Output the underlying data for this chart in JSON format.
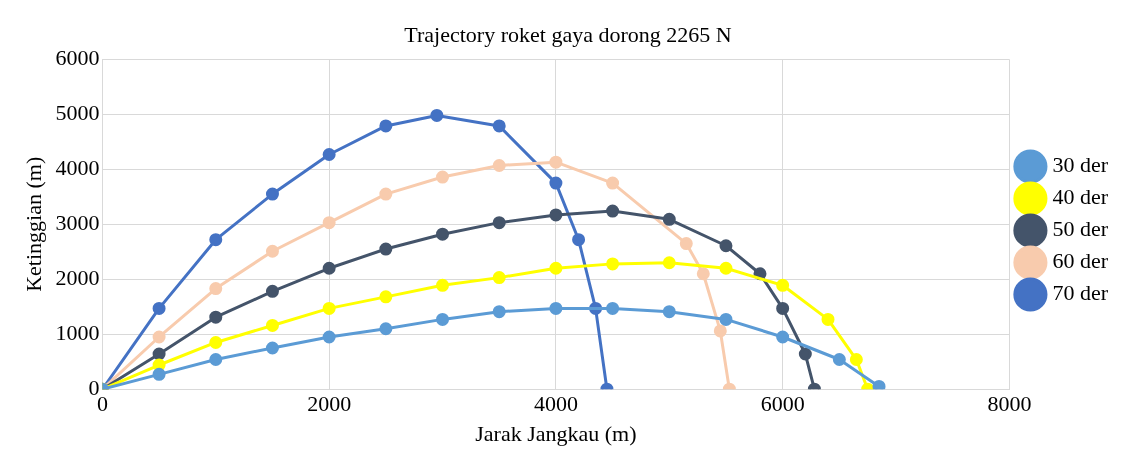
{
  "chart_data": {
    "type": "line",
    "title": "Trajectory roket gaya dorong 2265 N",
    "xlabel": "Jarak Jangkau (m)",
    "ylabel": "Ketinggian (m)",
    "xlim": [
      0,
      8000
    ],
    "xticks": [
      0,
      2000,
      4000,
      6000,
      8000
    ],
    "ylim": [
      0,
      6000
    ],
    "yticks": [
      0,
      1000,
      2000,
      3000,
      4000,
      5000,
      6000
    ],
    "grid": true,
    "legend": "right",
    "marker": "circle",
    "line_style": "solid",
    "series": [
      {
        "name": "30 der",
        "color": "#5b9bd5",
        "x": [
          0,
          500,
          1000,
          1500,
          2000,
          2500,
          3000,
          3500,
          4000,
          4500,
          5000,
          5500,
          6000,
          6500,
          6850
        ],
        "values": [
          0,
          270,
          540,
          750,
          950,
          1100,
          1270,
          1410,
          1470,
          1470,
          1410,
          1270,
          950,
          540,
          50
        ]
      },
      {
        "name": "40 der",
        "color": "#ffff00",
        "x": [
          0,
          500,
          1000,
          1500,
          2000,
          2500,
          3000,
          3500,
          4000,
          4500,
          5000,
          5500,
          6000,
          6400,
          6650,
          6750
        ],
        "values": [
          0,
          440,
          850,
          1160,
          1470,
          1680,
          1890,
          2030,
          2200,
          2280,
          2300,
          2200,
          1890,
          1270,
          540,
          0
        ]
      },
      {
        "name": "50 der",
        "color": "#44546a",
        "x": [
          0,
          500,
          1000,
          1500,
          2000,
          2500,
          3000,
          3500,
          4000,
          4500,
          5000,
          5500,
          5800,
          6000,
          6200,
          6280
        ],
        "values": [
          0,
          640,
          1310,
          1780,
          2200,
          2550,
          2820,
          3030,
          3170,
          3240,
          3090,
          2610,
          2100,
          1470,
          640,
          0
        ]
      },
      {
        "name": "60 der",
        "color": "#f8cbad",
        "x": [
          0,
          500,
          1000,
          1500,
          2000,
          2500,
          3000,
          3500,
          4000,
          4500,
          5150,
          5300,
          5450,
          5530
        ],
        "values": [
          0,
          950,
          1830,
          2510,
          3030,
          3550,
          3860,
          4070,
          4130,
          3750,
          2650,
          2100,
          1060,
          0
        ]
      },
      {
        "name": "70 der",
        "color": "#4472c4",
        "x": [
          0,
          500,
          1000,
          1500,
          2000,
          2500,
          2950,
          3500,
          4000,
          4200,
          4350,
          4450
        ],
        "values": [
          0,
          1470,
          2720,
          3550,
          4270,
          4790,
          4980,
          4790,
          3750,
          2720,
          1470,
          0
        ]
      }
    ]
  }
}
